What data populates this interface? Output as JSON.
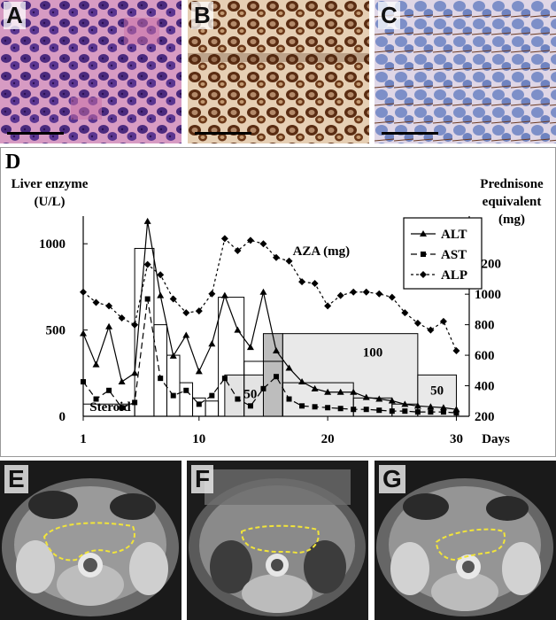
{
  "panels": {
    "a": {
      "letter": "A"
    },
    "b": {
      "letter": "B"
    },
    "c": {
      "letter": "C"
    },
    "e": {
      "letter": "E"
    },
    "f": {
      "letter": "F"
    },
    "g": {
      "letter": "G"
    }
  },
  "chart_data": {
    "type": "line",
    "panel_letter": "D",
    "ylabel_left": [
      "Liver enzyme",
      "(U/L)"
    ],
    "ylabel_right": [
      "Prednisone",
      "equivalent",
      "(mg)"
    ],
    "xlabel": "Days",
    "xticks": [
      1,
      10,
      20,
      30
    ],
    "yticks_left": [
      0,
      500,
      1000
    ],
    "yticks_right": [
      200,
      400,
      600,
      800,
      1000,
      1200
    ],
    "xlim": [
      1,
      31
    ],
    "ylim_left": [
      0,
      1150
    ],
    "ylim_right": [
      200,
      1500
    ],
    "legend_position": "top-right",
    "series": [
      {
        "name": "ALT",
        "style": "solid",
        "marker": "triangle",
        "x": [
          1,
          2,
          3,
          4,
          5,
          6,
          7,
          8,
          9,
          10,
          11,
          12,
          13,
          14,
          15,
          16,
          17,
          18,
          19,
          20,
          21,
          22,
          23,
          24,
          25,
          26,
          27,
          28,
          29,
          30
        ],
        "y": [
          480,
          300,
          520,
          200,
          250,
          1130,
          700,
          350,
          470,
          260,
          420,
          700,
          500,
          400,
          720,
          380,
          280,
          200,
          160,
          140,
          140,
          140,
          110,
          100,
          90,
          70,
          60,
          55,
          50,
          40
        ]
      },
      {
        "name": "AST",
        "style": "dashed",
        "marker": "square",
        "x": [
          1,
          2,
          3,
          4,
          5,
          6,
          7,
          8,
          9,
          10,
          11,
          12,
          13,
          14,
          15,
          16,
          17,
          18,
          19,
          20,
          21,
          22,
          23,
          24,
          25,
          26,
          27,
          28,
          29,
          30
        ],
        "y": [
          200,
          100,
          150,
          50,
          80,
          680,
          220,
          120,
          150,
          70,
          120,
          220,
          100,
          60,
          160,
          230,
          100,
          60,
          55,
          50,
          45,
          40,
          40,
          35,
          30,
          30,
          25,
          25,
          25,
          20
        ]
      },
      {
        "name": "ALP",
        "style": "dotted",
        "marker": "diamond",
        "x": [
          1,
          2,
          3,
          4,
          5,
          6,
          7,
          8,
          9,
          10,
          11,
          12,
          13,
          14,
          15,
          16,
          17,
          18,
          19,
          20,
          21,
          22,
          23,
          24,
          25,
          26,
          27,
          28,
          29,
          30
        ],
        "y": [
          720,
          660,
          640,
          570,
          530,
          880,
          820,
          680,
          600,
          610,
          710,
          1030,
          960,
          1020,
          1000,
          920,
          900,
          780,
          770,
          640,
          700,
          720,
          720,
          710,
          690,
          600,
          540,
          500,
          550,
          380
        ]
      }
    ],
    "prednisone_bars": [
      {
        "from": 1,
        "to": 5,
        "value": 280
      },
      {
        "from": 5,
        "to": 6.5,
        "value": 1300
      },
      {
        "from": 6.5,
        "to": 7.5,
        "value": 800
      },
      {
        "from": 7.5,
        "to": 8.5,
        "value": 600
      },
      {
        "from": 8.5,
        "to": 9.5,
        "value": 420
      },
      {
        "from": 9.5,
        "to": 10.5,
        "value": 320
      },
      {
        "from": 10.5,
        "to": 11.5,
        "value": 300
      },
      {
        "from": 11.5,
        "to": 13.5,
        "value": 980
      },
      {
        "from": 13.5,
        "to": 16.5,
        "value": 560
      },
      {
        "from": 16.5,
        "to": 22,
        "value": 420
      },
      {
        "from": 22,
        "to": 25,
        "value": 320
      },
      {
        "from": 25,
        "to": 27,
        "value": 280
      }
    ],
    "aza_bars": [
      {
        "from": 12,
        "to": 16.5,
        "value": 50,
        "label": "50"
      },
      {
        "from": 16.5,
        "to": 27,
        "value": 100,
        "label": "100"
      },
      {
        "from": 27,
        "to": 30,
        "value": 50,
        "label": "50"
      }
    ],
    "aza_label": "AZA (mg)",
    "steroid_label": "Steroid"
  }
}
